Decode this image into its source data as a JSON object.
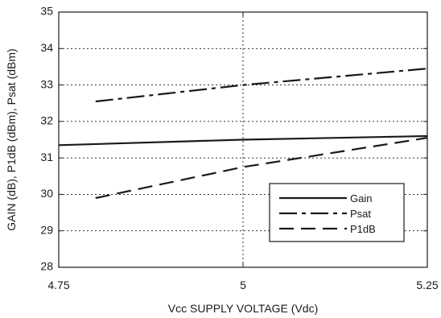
{
  "chart_data": {
    "type": "line",
    "xlabel": "Vcc SUPPLY VOLTAGE (Vdc)",
    "ylabel": "GAIN (dB), P1dB (dBm), Psat (dBm)",
    "xlim": [
      4.75,
      5.25
    ],
    "ylim": [
      28,
      35
    ],
    "x_ticks": [
      "4.75",
      "5",
      "5.25"
    ],
    "y_ticks": [
      "28",
      "29",
      "30",
      "31",
      "32",
      "33",
      "34",
      "35"
    ],
    "grid": "dotted",
    "legend_position": "bottom-right",
    "series": [
      {
        "name": "Gain",
        "dash": "solid",
        "x": [
          4.75,
          5.0,
          5.25
        ],
        "y": [
          31.35,
          31.5,
          31.6
        ]
      },
      {
        "name": "Psat",
        "dash": "dash-dot",
        "x": [
          4.8,
          5.0,
          5.25
        ],
        "y": [
          32.55,
          33.0,
          33.45
        ]
      },
      {
        "name": "P1dB",
        "dash": "dashed",
        "x": [
          4.8,
          5.0,
          5.25
        ],
        "y": [
          29.9,
          30.75,
          31.55
        ]
      }
    ],
    "colors": {
      "line": "#1a1a1a",
      "grid": "#1a1a1a",
      "background": "#ffffff"
    }
  }
}
